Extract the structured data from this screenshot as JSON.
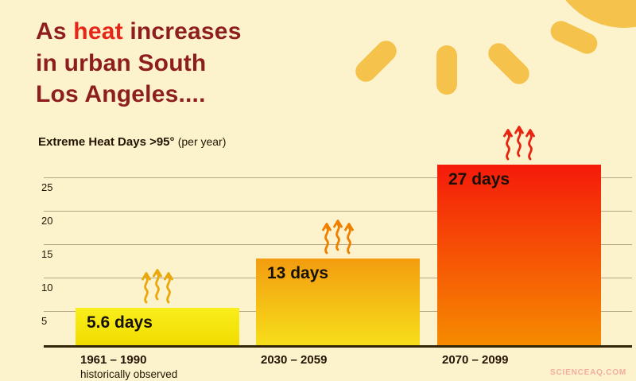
{
  "header": {
    "line1_prefix": "As ",
    "line1_highlight": "heat",
    "line1_suffix": " increases",
    "line2": "in urban South",
    "line3": "Los Angeles...."
  },
  "chart_label": {
    "bold": "Extreme Heat Days >95°",
    "normal": "(per year)"
  },
  "chart_data": {
    "type": "bar",
    "title": "Extreme Heat Days >95° (per year)",
    "categories": [
      "1961 – 1990",
      "2030 – 2059",
      "2070 – 2099"
    ],
    "category_notes": [
      "historically observed",
      "",
      ""
    ],
    "values": [
      5.6,
      13,
      27
    ],
    "bar_labels": [
      "5.6 days",
      "13 days",
      "27 days"
    ],
    "ylabel": "",
    "yticks": [
      5,
      10,
      15,
      20,
      25
    ],
    "ylim": [
      0,
      30
    ],
    "grid": true,
    "legend": false,
    "bar_colors": [
      {
        "top": "#f9ee1c",
        "bottom": "#f1dc00"
      },
      {
        "top": "#f39c0f",
        "bottom": "#f6de1a"
      },
      {
        "top": "#f51a0a",
        "bottom": "#f68b00"
      }
    ],
    "arrow_colors": [
      "#e9a80c",
      "#f07f00",
      "#e8230f"
    ]
  },
  "watermark": "SCIENCEAQ.COM",
  "colors": {
    "background": "#fcf2cb",
    "title": "#8e1e1e",
    "title_highlight": "#e52619",
    "sun": "#f5c34b",
    "text_dark": "#241504",
    "gridline": "#b5a584",
    "baseline": "#332508",
    "watermark": "#f2afa0"
  }
}
